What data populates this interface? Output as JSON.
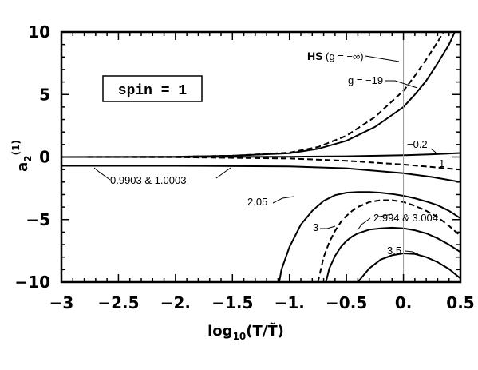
{
  "chart_data": {
    "type": "line",
    "title": "",
    "xlabel": "log10(T/T̃)",
    "ylabel": "a2(1)",
    "xlim": [
      -3,
      0.5
    ],
    "ylim": [
      -10,
      10
    ],
    "grid": false,
    "x_ticks": [
      -3,
      -2.5,
      -2,
      -1.5,
      -1,
      -0.5,
      0,
      0.5
    ],
    "x_tick_labels": [
      "−3",
      "−2.5",
      "−2.",
      "−1.5",
      "−1.",
      "−0.5",
      "0.",
      "0.5"
    ],
    "y_ticks": [
      -10,
      -5,
      0,
      5,
      10
    ],
    "y_tick_labels": [
      "−10",
      "−5",
      "0",
      "5",
      "10"
    ],
    "reference_line_x": 0,
    "box_label": "spin = 1",
    "series": [
      {
        "name": "HS (g = −∞)",
        "style": "dashed",
        "x": [
          -3,
          -2,
          -1.5,
          -1,
          -0.75,
          -0.5,
          -0.25,
          0,
          0.1,
          0.2,
          0.3,
          0.35
        ],
        "y": [
          0,
          0.02,
          0.1,
          0.35,
          0.8,
          1.7,
          3.2,
          5.3,
          6.5,
          7.8,
          9.2,
          10
        ]
      },
      {
        "name": "g = −19",
        "style": "solid",
        "x": [
          -3,
          -2,
          -1.5,
          -1,
          -0.75,
          -0.5,
          -0.25,
          0,
          0.1,
          0.2,
          0.3,
          0.4,
          0.45
        ],
        "y": [
          0,
          0.02,
          0.1,
          0.3,
          0.65,
          1.3,
          2.4,
          4.0,
          5.0,
          6.1,
          7.5,
          9.0,
          10
        ]
      },
      {
        "name": "−0.2",
        "style": "solid",
        "x": [
          -3,
          -2,
          -1,
          -0.5,
          0,
          0.25,
          0.5
        ],
        "y": [
          0,
          0,
          0.02,
          0.06,
          0.14,
          0.22,
          0.32
        ]
      },
      {
        "name": "−1",
        "style": "dashed",
        "x": [
          -3,
          -2,
          -1,
          -0.5,
          0,
          0.25,
          0.5
        ],
        "y": [
          0,
          -0.02,
          -0.12,
          -0.3,
          -0.6,
          -0.8,
          -1.0
        ]
      },
      {
        "name": "0.9903 & 1.0003",
        "style": "solid",
        "x": [
          -3,
          -2,
          -1,
          -0.5,
          0,
          0.25,
          0.5
        ],
        "y": [
          -0.7,
          -0.7,
          -0.75,
          -0.9,
          -1.3,
          -1.6,
          -2.0
        ]
      },
      {
        "name": "2.05",
        "style": "solid",
        "x": [
          -1.09,
          -1.07,
          -1.0,
          -0.9,
          -0.8,
          -0.7,
          -0.6,
          -0.5,
          -0.4,
          -0.3,
          -0.2,
          -0.1,
          0,
          0.1,
          0.2,
          0.3,
          0.4,
          0.5
        ],
        "y": [
          -10,
          -9.0,
          -7.2,
          -5.4,
          -4.3,
          -3.5,
          -3.05,
          -2.85,
          -2.8,
          -2.8,
          -2.85,
          -2.95,
          -3.1,
          -3.3,
          -3.55,
          -3.85,
          -4.3,
          -4.9
        ]
      },
      {
        "name": "3",
        "style": "dashed",
        "x": [
          -0.75,
          -0.7,
          -0.65,
          -0.6,
          -0.55,
          -0.5,
          -0.45,
          -0.4,
          -0.3,
          -0.2,
          -0.1,
          0,
          0.1,
          0.2,
          0.3,
          0.4,
          0.5
        ],
        "y": [
          -10,
          -8.0,
          -6.8,
          -5.9,
          -5.2,
          -4.7,
          -4.3,
          -4.0,
          -3.6,
          -3.45,
          -3.45,
          -3.6,
          -3.9,
          -4.3,
          -4.8,
          -5.5,
          -6.3
        ]
      },
      {
        "name": "2.994 & 3.004",
        "style": "solid",
        "x": [
          -0.68,
          -0.65,
          -0.6,
          -0.55,
          -0.5,
          -0.45,
          -0.4,
          -0.3,
          -0.2,
          -0.1,
          0,
          0.1,
          0.2,
          0.3,
          0.4,
          0.5
        ],
        "y": [
          -10,
          -8.9,
          -7.9,
          -7.2,
          -6.7,
          -6.35,
          -6.1,
          -5.8,
          -5.7,
          -5.65,
          -5.7,
          -5.85,
          -6.1,
          -6.5,
          -7.0,
          -7.6
        ]
      },
      {
        "name": "3.5",
        "style": "solid",
        "x": [
          -0.4,
          -0.3,
          -0.2,
          -0.1,
          0,
          0.1,
          0.2,
          0.3,
          0.4,
          0.5
        ],
        "y": [
          -10,
          -8.9,
          -8.2,
          -7.85,
          -7.7,
          -7.75,
          -8.0,
          -8.4,
          -8.95,
          -9.7
        ]
      }
    ],
    "annotations": [
      {
        "text": "HS",
        "x": 0,
        "y": 8.1
      },
      {
        "text": "(g = −∞)",
        "x": 0,
        "y": 8.1
      },
      {
        "text": "g = −19",
        "x": 0,
        "y": 6.1
      },
      {
        "text": "−0.2",
        "x": 0,
        "y": 0.9
      },
      {
        "text": "1",
        "x": 0,
        "y": -0.3
      },
      {
        "text": "0.9903 & 1.0003",
        "x": 0,
        "y": -1.7
      },
      {
        "text": "2.05",
        "x": 0,
        "y": -4.3
      },
      {
        "text": "3",
        "x": 0,
        "y": -5.7
      },
      {
        "text": "2.994 & 3.004",
        "x": 0,
        "y": -5.0
      },
      {
        "text": "3.5",
        "x": 0,
        "y": -7.5
      }
    ]
  }
}
